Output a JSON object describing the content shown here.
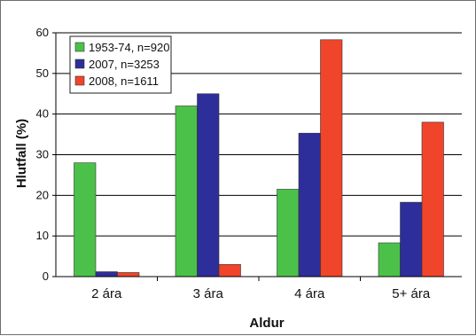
{
  "chart_data": {
    "type": "bar",
    "title": "",
    "xlabel": "Aldur",
    "ylabel": "Hlutfall (%)",
    "ylim": [
      0,
      60
    ],
    "yticks": [
      0,
      10,
      20,
      30,
      40,
      50,
      60
    ],
    "grid": true,
    "legend_position": "top-left",
    "categories": [
      "2 ára",
      "3 ára",
      "4 ára",
      "5+ ára"
    ],
    "series": [
      {
        "name": "1953-74, n=920",
        "color": "#4cc14a",
        "values": [
          28,
          42,
          21.5,
          8.3
        ]
      },
      {
        "name": "2007, n=3253",
        "color": "#2e2e9a",
        "values": [
          1.2,
          45,
          35.3,
          18.3
        ]
      },
      {
        "name": "2008, n=1611",
        "color": "#f0452a",
        "values": [
          1.0,
          3.0,
          58.3,
          38
        ]
      }
    ]
  }
}
